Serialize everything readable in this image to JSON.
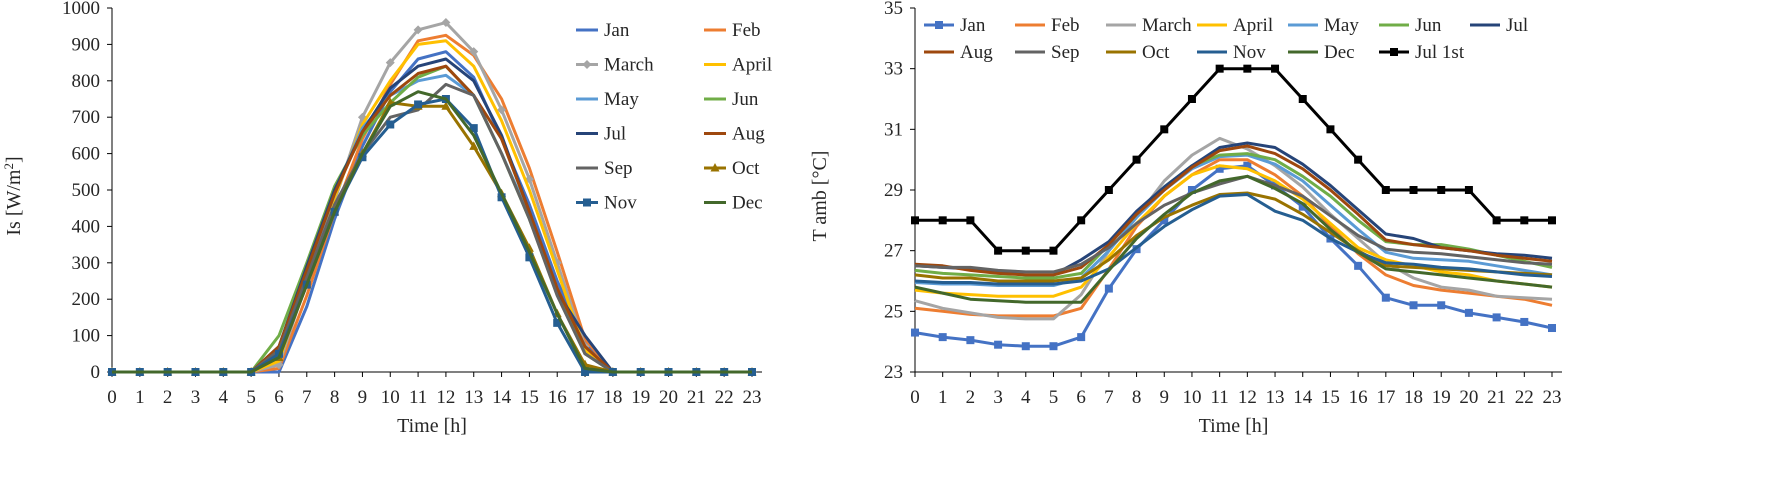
{
  "colors": {
    "Jan": "#4472C4",
    "Feb": "#ED7D31",
    "March": "#A5A5A5",
    "April": "#FFC000",
    "May": "#5B9BD5",
    "Jun": "#70AD47",
    "Jul": "#264478",
    "Aug": "#9E480E",
    "Sep": "#636363",
    "Oct": "#997300",
    "Nov": "#255E91",
    "Dec": "#43682B",
    "Jul1st": "#000000",
    "axis": "#000000",
    "tick": "#262626"
  },
  "chart_data": [
    {
      "type": "line",
      "xlabel": "Time [h]",
      "ylabel": "Is [W/m²]",
      "ylabel_main": "Is [W/m",
      "ylabel_sup": "2",
      "ylabel_end": "]",
      "ylim": [
        0,
        1000
      ],
      "ytick_step": 100,
      "grid": false,
      "legend_position": "top-right",
      "legend_columns": 2,
      "x": [
        0,
        1,
        2,
        3,
        4,
        5,
        6,
        7,
        8,
        9,
        10,
        11,
        12,
        13,
        14,
        15,
        16,
        17,
        18,
        19,
        20,
        21,
        22,
        23
      ],
      "series": [
        {
          "name": "Jan",
          "color": "#4472C4",
          "marker": "none",
          "values": [
            0,
            0,
            0,
            0,
            0,
            0,
            0,
            180,
            420,
            620,
            770,
            860,
            880,
            810,
            640,
            460,
            250,
            80,
            0,
            0,
            0,
            0,
            0,
            0
          ]
        },
        {
          "name": "Feb",
          "color": "#ED7D31",
          "marker": "none",
          "values": [
            0,
            0,
            0,
            0,
            0,
            0,
            10,
            210,
            440,
            640,
            790,
            910,
            925,
            870,
            750,
            560,
            330,
            90,
            0,
            0,
            0,
            0,
            0,
            0
          ]
        },
        {
          "name": "March",
          "color": "#A5A5A5",
          "marker": "diamond",
          "values": [
            0,
            0,
            0,
            0,
            0,
            0,
            20,
            250,
            470,
            700,
            850,
            940,
            960,
            880,
            720,
            530,
            300,
            70,
            0,
            0,
            0,
            0,
            0,
            0
          ]
        },
        {
          "name": "April",
          "color": "#FFC000",
          "marker": "none",
          "values": [
            0,
            0,
            0,
            0,
            0,
            0,
            30,
            260,
            480,
            680,
            800,
            900,
            910,
            840,
            690,
            500,
            280,
            60,
            0,
            0,
            0,
            0,
            0,
            0
          ]
        },
        {
          "name": "May",
          "color": "#5B9BD5",
          "marker": "none",
          "values": [
            0,
            0,
            0,
            0,
            0,
            0,
            50,
            270,
            490,
            670,
            760,
            800,
            815,
            760,
            600,
            430,
            230,
            50,
            0,
            0,
            0,
            0,
            0,
            0
          ]
        },
        {
          "name": "Jun",
          "color": "#70AD47",
          "marker": "none",
          "values": [
            0,
            0,
            0,
            0,
            0,
            0,
            100,
            300,
            510,
            650,
            740,
            810,
            840,
            760,
            600,
            420,
            220,
            50,
            0,
            0,
            0,
            0,
            0,
            0
          ]
        },
        {
          "name": "Jul",
          "color": "#264478",
          "marker": "none",
          "values": [
            0,
            0,
            0,
            0,
            0,
            0,
            70,
            290,
            500,
            660,
            780,
            840,
            860,
            800,
            650,
            440,
            220,
            100,
            0,
            0,
            0,
            0,
            0,
            0
          ]
        },
        {
          "name": "Aug",
          "color": "#9E480E",
          "marker": "none",
          "values": [
            0,
            0,
            0,
            0,
            0,
            0,
            70,
            280,
            490,
            660,
            760,
            820,
            840,
            760,
            640,
            440,
            230,
            70,
            0,
            0,
            0,
            0,
            0,
            0
          ]
        },
        {
          "name": "Sep",
          "color": "#636363",
          "marker": "none",
          "values": [
            0,
            0,
            0,
            0,
            0,
            0,
            60,
            260,
            460,
            600,
            700,
            720,
            790,
            760,
            600,
            420,
            210,
            50,
            0,
            0,
            0,
            0,
            0,
            0
          ]
        },
        {
          "name": "Oct",
          "color": "#997300",
          "marker": "triangle",
          "values": [
            0,
            0,
            0,
            0,
            0,
            0,
            40,
            240,
            440,
            600,
            740,
            730,
            730,
            620,
            490,
            340,
            160,
            20,
            0,
            0,
            0,
            0,
            0,
            0
          ]
        },
        {
          "name": "Nov",
          "color": "#255E91",
          "marker": "square",
          "values": [
            0,
            0,
            0,
            0,
            0,
            0,
            50,
            240,
            440,
            590,
            680,
            735,
            750,
            670,
            480,
            315,
            135,
            0,
            0,
            0,
            0,
            0,
            0,
            0
          ]
        },
        {
          "name": "Dec",
          "color": "#43682B",
          "marker": "none",
          "values": [
            0,
            0,
            0,
            0,
            0,
            0,
            40,
            240,
            440,
            600,
            730,
            770,
            750,
            650,
            490,
            330,
            160,
            10,
            0,
            0,
            0,
            0,
            0,
            0
          ]
        }
      ]
    },
    {
      "type": "line",
      "xlabel": "Time [h]",
      "ylabel": "T amb [°C]",
      "ylim": [
        23,
        35
      ],
      "ytick_step": 2,
      "grid": false,
      "legend_position": "top",
      "legend_columns": 7,
      "x": [
        0,
        1,
        2,
        3,
        4,
        5,
        6,
        7,
        8,
        9,
        10,
        11,
        12,
        13,
        14,
        15,
        16,
        17,
        18,
        19,
        20,
        21,
        22,
        23
      ],
      "series": [
        {
          "name": "Jan",
          "color": "#4472C4",
          "marker": "square",
          "values": [
            24.3,
            24.15,
            24.05,
            23.9,
            23.85,
            23.85,
            24.15,
            25.75,
            27.05,
            28.0,
            29.0,
            29.7,
            29.8,
            29.15,
            28.45,
            27.4,
            26.5,
            25.45,
            25.2,
            25.2,
            24.95,
            24.8,
            24.65,
            24.45
          ]
        },
        {
          "name": "Feb",
          "color": "#ED7D31",
          "marker": "none",
          "values": [
            25.1,
            25.0,
            24.9,
            24.85,
            24.85,
            24.85,
            25.1,
            26.4,
            27.8,
            28.8,
            29.5,
            30.0,
            30.0,
            29.5,
            28.8,
            27.8,
            26.9,
            26.2,
            25.85,
            25.7,
            25.6,
            25.5,
            25.4,
            25.2
          ]
        },
        {
          "name": "March",
          "color": "#A5A5A5",
          "marker": "none",
          "values": [
            25.35,
            25.1,
            24.95,
            24.8,
            24.75,
            24.75,
            25.55,
            27.0,
            28.1,
            29.3,
            30.15,
            30.7,
            30.35,
            29.8,
            29.1,
            28.2,
            27.4,
            26.6,
            26.1,
            25.8,
            25.7,
            25.5,
            25.45,
            25.4
          ]
        },
        {
          "name": "April",
          "color": "#FFC000",
          "marker": "none",
          "values": [
            25.7,
            25.6,
            25.55,
            25.5,
            25.5,
            25.5,
            25.8,
            26.8,
            27.9,
            28.8,
            29.5,
            29.8,
            29.7,
            29.3,
            28.7,
            27.9,
            27.1,
            26.7,
            26.5,
            26.3,
            26.2,
            26.0,
            25.9,
            25.8
          ]
        },
        {
          "name": "May",
          "color": "#5B9BD5",
          "marker": "none",
          "values": [
            25.95,
            25.9,
            25.9,
            25.85,
            25.85,
            25.85,
            26.1,
            27.0,
            28.1,
            29.0,
            29.7,
            30.1,
            30.15,
            29.85,
            29.3,
            28.5,
            27.7,
            26.95,
            26.75,
            26.7,
            26.65,
            26.5,
            26.35,
            26.2
          ]
        },
        {
          "name": "Jun",
          "color": "#70AD47",
          "marker": "none",
          "values": [
            26.35,
            26.25,
            26.2,
            26.15,
            26.1,
            26.1,
            26.25,
            27.2,
            28.2,
            29.1,
            29.8,
            30.15,
            30.2,
            30.0,
            29.45,
            28.8,
            28.0,
            27.3,
            27.2,
            27.2,
            27.05,
            26.85,
            26.65,
            26.45
          ]
        },
        {
          "name": "Jul",
          "color": "#264478",
          "marker": "none",
          "values": [
            26.5,
            26.45,
            26.4,
            26.3,
            26.2,
            26.2,
            26.7,
            27.3,
            28.3,
            29.1,
            29.8,
            30.4,
            30.55,
            30.4,
            29.85,
            29.15,
            28.35,
            27.55,
            27.4,
            27.1,
            27.0,
            26.9,
            26.85,
            26.75
          ]
        },
        {
          "name": "Aug",
          "color": "#9E480E",
          "marker": "none",
          "values": [
            26.55,
            26.5,
            26.35,
            26.25,
            26.2,
            26.2,
            26.45,
            27.2,
            28.2,
            29.0,
            29.75,
            30.3,
            30.45,
            30.2,
            29.7,
            29.0,
            28.2,
            27.35,
            27.2,
            27.1,
            27.0,
            26.85,
            26.75,
            26.65
          ]
        },
        {
          "name": "Sep",
          "color": "#636363",
          "marker": "none",
          "values": [
            26.5,
            26.45,
            26.45,
            26.35,
            26.3,
            26.3,
            26.55,
            27.1,
            27.9,
            28.5,
            28.9,
            29.2,
            29.45,
            29.15,
            28.8,
            28.15,
            27.5,
            27.05,
            26.95,
            26.9,
            26.8,
            26.7,
            26.6,
            26.55
          ]
        },
        {
          "name": "Oct",
          "color": "#997300",
          "marker": "none",
          "values": [
            26.2,
            26.1,
            26.1,
            26.0,
            26.0,
            26.0,
            26.1,
            26.7,
            27.5,
            28.1,
            28.5,
            28.85,
            28.9,
            28.7,
            28.2,
            27.6,
            27.0,
            26.5,
            26.45,
            26.4,
            26.35,
            26.3,
            26.25,
            26.2
          ]
        },
        {
          "name": "Nov",
          "color": "#255E91",
          "marker": "none",
          "values": [
            26.0,
            25.95,
            25.95,
            25.9,
            25.9,
            25.9,
            26.0,
            26.4,
            27.1,
            27.8,
            28.35,
            28.8,
            28.85,
            28.3,
            28.0,
            27.4,
            26.95,
            26.6,
            26.55,
            26.45,
            26.4,
            26.3,
            26.2,
            26.15
          ]
        },
        {
          "name": "Dec",
          "color": "#43682B",
          "marker": "none",
          "values": [
            25.8,
            25.6,
            25.4,
            25.35,
            25.3,
            25.3,
            25.3,
            26.35,
            27.4,
            28.2,
            28.9,
            29.3,
            29.45,
            29.05,
            28.55,
            27.7,
            26.95,
            26.4,
            26.3,
            26.2,
            26.1,
            26.0,
            25.9,
            25.8
          ]
        },
        {
          "name": "Jul 1st",
          "color": "#000000",
          "marker": "square",
          "values": [
            28,
            28,
            28,
            27,
            27,
            27,
            28,
            29,
            30,
            31,
            32,
            33,
            33,
            33,
            32,
            31,
            30,
            29,
            29,
            29,
            29,
            28,
            28,
            28
          ]
        }
      ]
    }
  ]
}
